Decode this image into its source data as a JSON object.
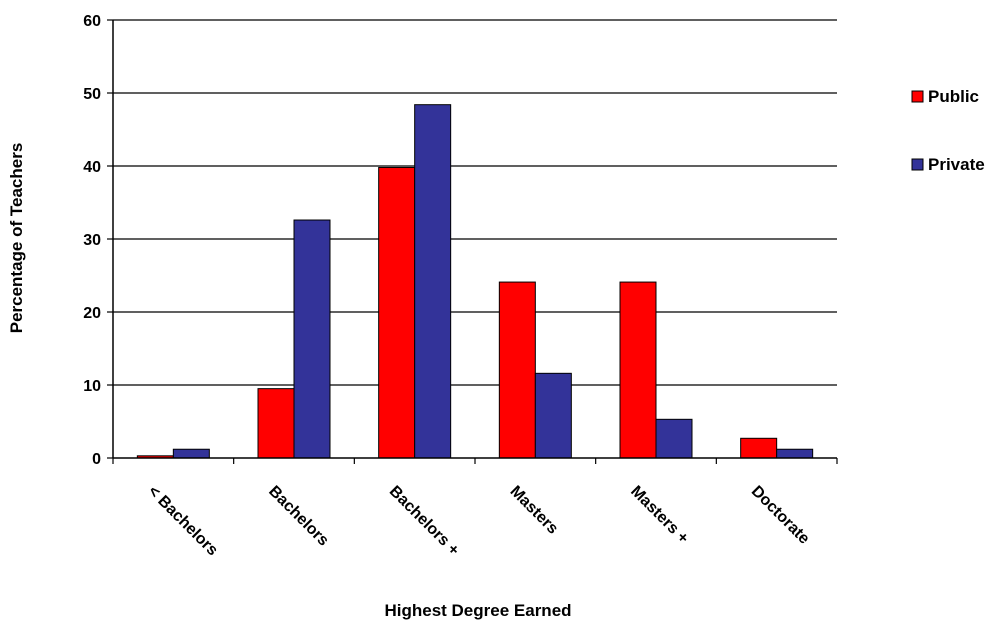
{
  "chart_data": {
    "type": "bar",
    "categories": [
      "< Bachelors",
      "Bachelors",
      "Bachelors +",
      "Masters",
      "Masters +",
      "Doctorate"
    ],
    "series": [
      {
        "name": "Public",
        "color": "#ff0000",
        "values": [
          0.3,
          9.5,
          39.8,
          24.1,
          24.1,
          2.7
        ]
      },
      {
        "name": "Private",
        "color": "#333399",
        "values": [
          1.2,
          32.6,
          48.4,
          11.6,
          5.3,
          1.2
        ]
      }
    ],
    "xlabel": "Highest Degree Earned",
    "ylabel": "Percentage of Teachers",
    "ylim": [
      0,
      60
    ],
    "yticks": [
      0,
      10,
      20,
      30,
      40,
      50,
      60
    ],
    "grid": true,
    "legend_position": "right"
  }
}
